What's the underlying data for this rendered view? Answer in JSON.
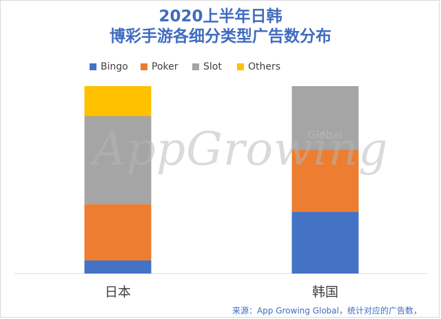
{
  "chart_data": {
    "type": "bar",
    "stacked": true,
    "normalized": true,
    "title": "2020上半年日韩",
    "subtitle": "博彩手游各细分类型广告数分布",
    "categories": [
      "日本",
      "韩国"
    ],
    "series": [
      {
        "name": "Bingo",
        "color": "#4472c4",
        "values": [
          7,
          33
        ]
      },
      {
        "name": "Poker",
        "color": "#ed7d31",
        "values": [
          30,
          33
        ]
      },
      {
        "name": "Slot",
        "color": "#a5a5a5",
        "values": [
          47,
          34
        ]
      },
      {
        "name": "Others",
        "color": "#ffc000",
        "values": [
          16,
          0
        ]
      }
    ],
    "legend_position": "top-left",
    "grid": false,
    "source": "来源：App Growing Global，统计对应的广告数，"
  },
  "watermark": {
    "text": "AppGrowing",
    "subtext": "Global"
  }
}
